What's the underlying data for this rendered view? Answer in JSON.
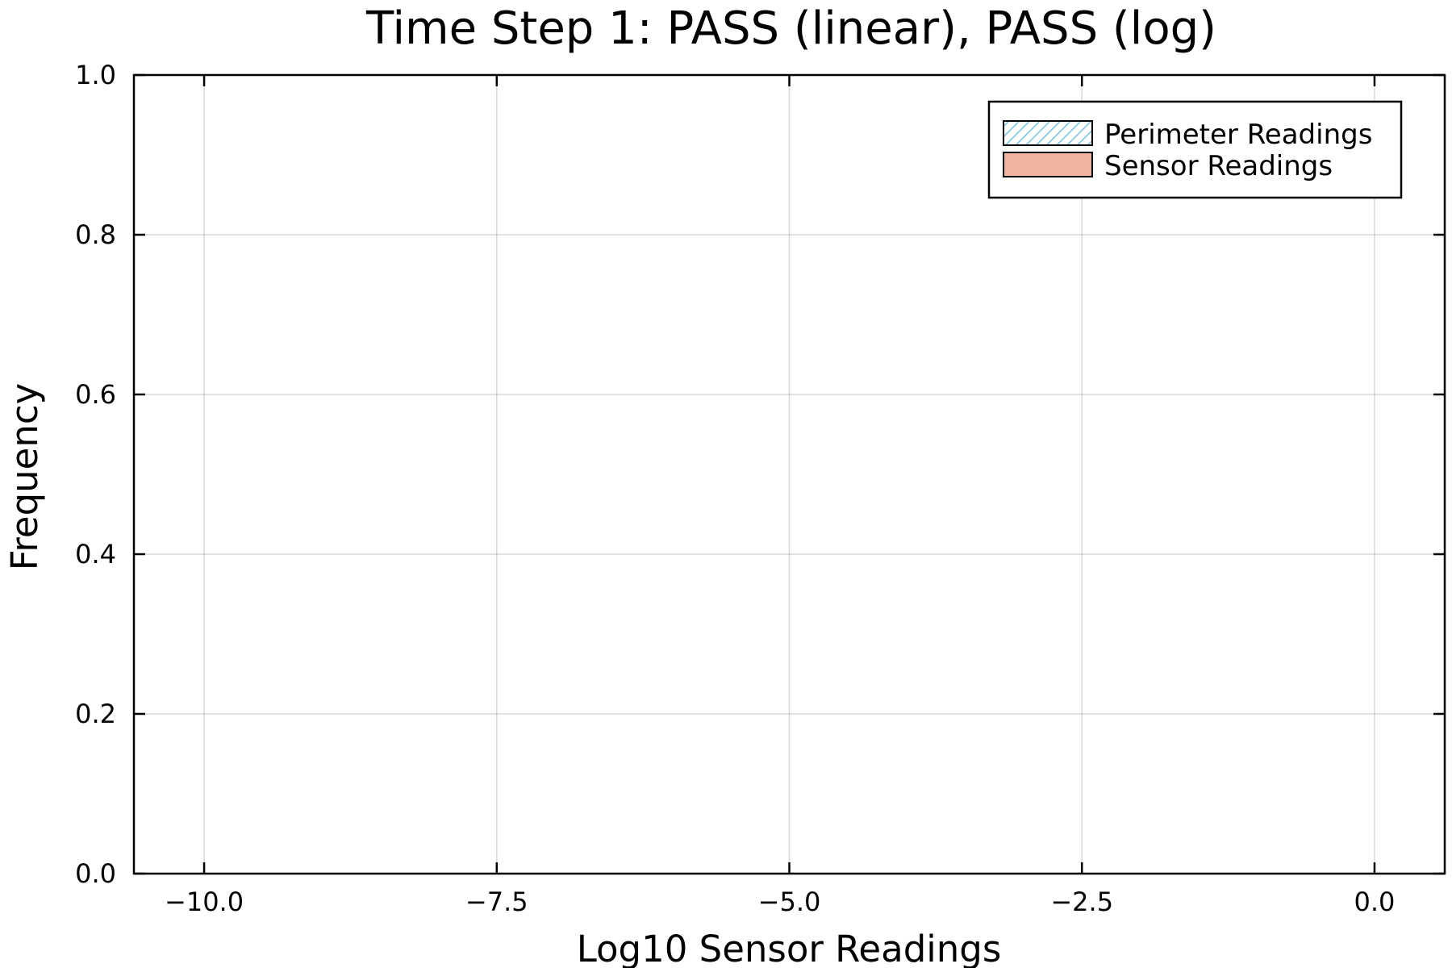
{
  "chart_data": {
    "type": "bar",
    "title": "Time Step 1: PASS (linear), PASS (log)",
    "xlabel": "Log10 Sensor Readings",
    "ylabel": "Frequency",
    "xlim": [
      -10.6,
      0.6
    ],
    "ylim": [
      0.0,
      1.0
    ],
    "x_ticks": [
      -10.0,
      -7.5,
      -5.0,
      -2.5,
      0.0
    ],
    "x_tick_labels": [
      "−10.0",
      "−7.5",
      "−5.0",
      "−2.5",
      "0.0"
    ],
    "y_ticks": [
      0.0,
      0.2,
      0.4,
      0.6,
      0.8,
      1.0
    ],
    "y_tick_labels": [
      "0.0",
      "0.2",
      "0.4",
      "0.6",
      "0.8",
      "1.0"
    ],
    "grid": true,
    "legend_position": "top-right",
    "series": [
      {
        "name": "Perimeter Readings",
        "fill": "hatched",
        "color": "#5bb8e6",
        "values": []
      },
      {
        "name": "Sensor Readings",
        "fill": "solid",
        "color": "#f0b4a0",
        "values": []
      }
    ]
  }
}
